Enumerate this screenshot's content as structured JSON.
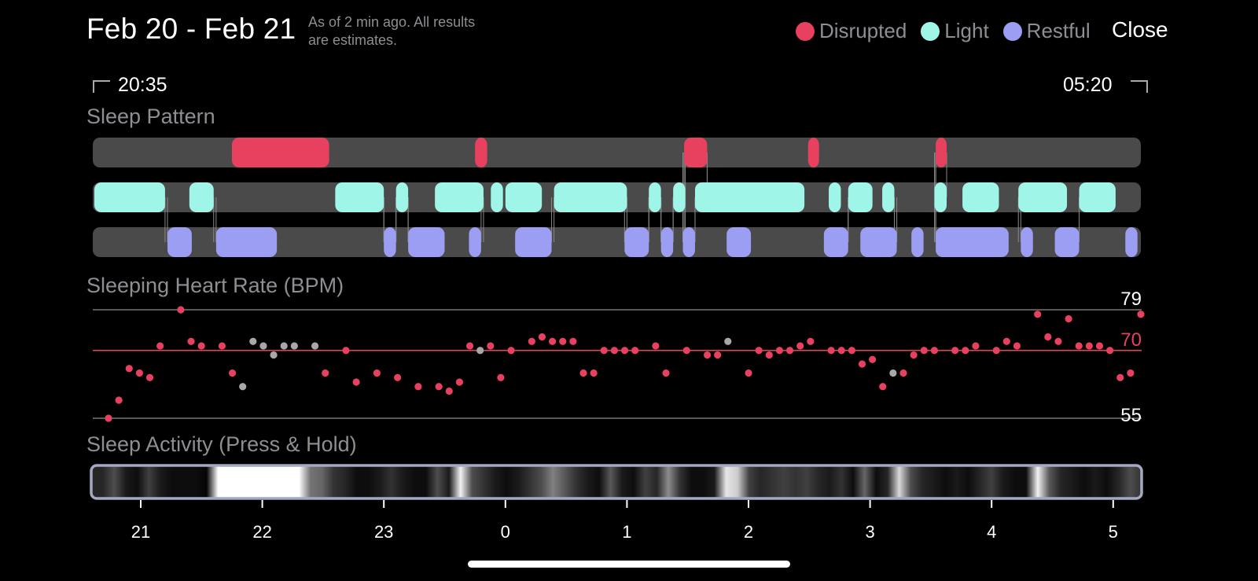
{
  "header": {
    "date_range": "Feb 20 - Feb 21",
    "as_of_line1": "As of 2 min ago. All results",
    "as_of_line2": "are estimates.",
    "close_label": "Close"
  },
  "legend": [
    {
      "label": "Disrupted",
      "color": "#e8405f"
    },
    {
      "label": "Light",
      "color": "#9ef5e8"
    },
    {
      "label": "Restful",
      "color": "#9b9ef2"
    }
  ],
  "range": {
    "start": "20:35",
    "end": "05:20"
  },
  "sleep_pattern": {
    "label": "Sleep Pattern",
    "track_color": "#4a4a4a",
    "disrupted": [
      [
        21.75,
        22.55
      ],
      [
        23.75,
        23.85
      ],
      [
        25.47,
        25.66
      ],
      [
        26.49,
        26.58
      ],
      [
        27.54,
        27.63
      ]
    ],
    "light": [
      [
        20.6,
        21.2
      ],
      [
        21.4,
        21.6
      ],
      [
        22.6,
        23.0
      ],
      [
        23.1,
        23.2
      ],
      [
        23.42,
        23.82
      ],
      [
        23.88,
        23.98
      ],
      [
        24.0,
        24.3
      ],
      [
        24.4,
        25.0
      ],
      [
        25.18,
        25.28
      ],
      [
        25.38,
        25.48
      ],
      [
        25.56,
        25.86
      ],
      [
        25.66,
        26.46
      ],
      [
        26.66,
        26.76
      ],
      [
        26.82,
        27.02
      ],
      [
        27.1,
        27.2
      ],
      [
        27.53,
        27.63
      ],
      [
        27.76,
        28.06
      ],
      [
        28.22,
        28.62
      ],
      [
        28.72,
        29.02
      ]
    ],
    "restful": [
      [
        21.22,
        21.42
      ],
      [
        21.62,
        22.12
      ],
      [
        23.0,
        23.1
      ],
      [
        23.2,
        23.5
      ],
      [
        23.7,
        23.8
      ],
      [
        24.08,
        24.38
      ],
      [
        24.98,
        25.18
      ],
      [
        25.28,
        25.38
      ],
      [
        25.46,
        25.56
      ],
      [
        25.82,
        26.02
      ],
      [
        26.62,
        26.82
      ],
      [
        26.92,
        27.22
      ],
      [
        27.34,
        27.44
      ],
      [
        27.54,
        28.14
      ],
      [
        28.24,
        28.34
      ],
      [
        28.52,
        28.72
      ],
      [
        29.1,
        29.2
      ]
    ]
  },
  "heart_rate": {
    "label": "Sleeping Heart Rate (BPM)",
    "max": 79,
    "avg": 70,
    "min": 55,
    "avg_color": "#e8405f",
    "points": [
      [
        20.72,
        55,
        "r"
      ],
      [
        20.82,
        59,
        "r"
      ],
      [
        20.92,
        66,
        "r"
      ],
      [
        21.02,
        65,
        "r"
      ],
      [
        21.12,
        64,
        "r"
      ],
      [
        21.22,
        71,
        "r"
      ],
      [
        21.42,
        79,
        "r"
      ],
      [
        21.52,
        72,
        "r"
      ],
      [
        21.62,
        71,
        "r"
      ],
      [
        21.82,
        71,
        "r"
      ],
      [
        21.92,
        65,
        "r"
      ],
      [
        22.02,
        62,
        "g"
      ],
      [
        22.12,
        72,
        "g"
      ],
      [
        22.22,
        71,
        "g"
      ],
      [
        22.32,
        69,
        "g"
      ],
      [
        22.42,
        71,
        "g"
      ],
      [
        22.52,
        71,
        "g"
      ],
      [
        22.72,
        71,
        "g"
      ],
      [
        22.82,
        65,
        "r"
      ],
      [
        23.02,
        70,
        "r"
      ],
      [
        23.12,
        63,
        "r"
      ],
      [
        23.32,
        65,
        "r"
      ],
      [
        23.52,
        64,
        "r"
      ],
      [
        23.72,
        62,
        "r"
      ],
      [
        23.92,
        62,
        "r"
      ],
      [
        24.02,
        61,
        "r"
      ],
      [
        24.12,
        63,
        "r"
      ],
      [
        24.22,
        71,
        "r"
      ],
      [
        24.32,
        70,
        "g"
      ],
      [
        24.42,
        71,
        "r"
      ],
      [
        24.52,
        64,
        "r"
      ],
      [
        24.62,
        70,
        "r"
      ],
      [
        24.82,
        72,
        "r"
      ],
      [
        24.92,
        73,
        "r"
      ],
      [
        25.02,
        72,
        "r"
      ],
      [
        25.12,
        72,
        "r"
      ],
      [
        25.22,
        72,
        "r"
      ],
      [
        25.32,
        65,
        "r"
      ],
      [
        25.42,
        65,
        "r"
      ],
      [
        25.52,
        70,
        "r"
      ],
      [
        25.62,
        70,
        "r"
      ],
      [
        25.72,
        70,
        "r"
      ],
      [
        25.82,
        70,
        "r"
      ],
      [
        26.02,
        71,
        "r"
      ],
      [
        26.12,
        65,
        "r"
      ],
      [
        26.32,
        70,
        "r"
      ],
      [
        26.52,
        69,
        "r"
      ],
      [
        26.62,
        69,
        "r"
      ],
      [
        26.72,
        72,
        "g"
      ],
      [
        26.92,
        65,
        "r"
      ],
      [
        27.02,
        70,
        "r"
      ],
      [
        27.12,
        69,
        "r"
      ],
      [
        27.22,
        70,
        "r"
      ],
      [
        27.32,
        70,
        "r"
      ],
      [
        27.42,
        71,
        "r"
      ],
      [
        27.52,
        72,
        "r"
      ],
      [
        27.72,
        70,
        "r"
      ],
      [
        27.82,
        70,
        "r"
      ],
      [
        27.92,
        70,
        "r"
      ],
      [
        28.02,
        67,
        "r"
      ],
      [
        28.12,
        68,
        "r"
      ],
      [
        28.22,
        62,
        "r"
      ],
      [
        28.32,
        65,
        "g"
      ],
      [
        28.42,
        65,
        "r"
      ],
      [
        28.52,
        69,
        "r"
      ],
      [
        28.62,
        70,
        "r"
      ],
      [
        28.72,
        70,
        "r"
      ],
      [
        28.92,
        70,
        "r"
      ],
      [
        29.02,
        70,
        "r"
      ],
      [
        29.12,
        71,
        "r"
      ],
      [
        29.32,
        70,
        "r"
      ],
      [
        29.42,
        72,
        "r"
      ],
      [
        29.52,
        71,
        "r"
      ],
      [
        29.72,
        78,
        "r"
      ],
      [
        29.82,
        73,
        "r"
      ],
      [
        29.92,
        72,
        "r"
      ],
      [
        30.02,
        77,
        "r"
      ],
      [
        30.12,
        71,
        "r"
      ],
      [
        30.22,
        71,
        "r"
      ],
      [
        30.32,
        71,
        "r"
      ],
      [
        30.42,
        70,
        "r"
      ],
      [
        30.52,
        64,
        "r"
      ],
      [
        30.62,
        65,
        "r"
      ],
      [
        30.72,
        78,
        "r"
      ]
    ]
  },
  "activity": {
    "label": "Sleep Activity (Press & Hold)",
    "ticks": [
      "21",
      "22",
      "23",
      "0",
      "1",
      "2",
      "3",
      "4",
      "5"
    ],
    "intensity": [
      0.15,
      0.15,
      0.3,
      0.1,
      0.05,
      0.25,
      0.1,
      0.05,
      0.05,
      0.05,
      0.02,
      1,
      1,
      1,
      1,
      1,
      1,
      1,
      1,
      0.45,
      0.4,
      0.2,
      0.15,
      0.05,
      0.05,
      0.1,
      0.2,
      0.1,
      0.05,
      0.05,
      0.3,
      0.1,
      0.95,
      0.3,
      0.2,
      0.1,
      0.05,
      0.1,
      0.2,
      0.3,
      0.5,
      0.35,
      0.2,
      0.1,
      0.05,
      0.35,
      0.1,
      0.05,
      0.25,
      0.15,
      0.55,
      0.2,
      0.05,
      0.05,
      0.1,
      0.9,
      0.8,
      0.25,
      0.15,
      0.2,
      0.25,
      0.2,
      0.25,
      0.15,
      0.1,
      0.2,
      0.05,
      0.4,
      0.05,
      0.15,
      0.85,
      0.3,
      0.15,
      0.1,
      0.05,
      0.1,
      0.05,
      0.15,
      0.25,
      0.1,
      0.05,
      0.05,
      0.95,
      0.35,
      0.15,
      0.1,
      0.05,
      0.1,
      0.05,
      0.15,
      0.3,
      0.2
    ]
  }
}
